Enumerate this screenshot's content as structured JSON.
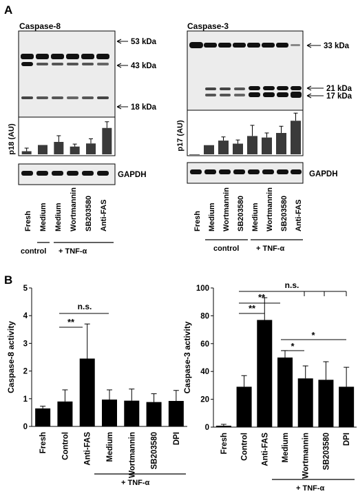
{
  "panel_a": {
    "label": "A",
    "caspase8": {
      "title": "Caspase-8",
      "markers": [
        "53 kDa",
        "43 kDa",
        "18 kDa"
      ],
      "ylabel": "p18 (AU)",
      "loading": "GAPDH",
      "lanes": [
        "Fresh",
        "Medium",
        "Medium",
        "Wortmannin",
        "SB203580",
        "Anti-FAS"
      ],
      "groups": [
        "control",
        "+ TNF-α"
      ]
    },
    "caspase3": {
      "title": "Caspase-3",
      "markers": [
        "33 kDa",
        "21 kDa",
        "17 kDa"
      ],
      "ylabel": "p17 (AU)",
      "loading": "GAPDH",
      "lanes": [
        "Fresh",
        "Medium",
        "Wortmannin",
        "SB203580",
        "Medium",
        "Wortmannin",
        "SB203580",
        "Anti-FAS"
      ],
      "groups": [
        "control",
        "+ TNF-α"
      ]
    }
  },
  "panel_b": {
    "label": "B",
    "group_label": "+ TNF-α",
    "stats_c8": [
      "**",
      "n.s."
    ],
    "stats_c3": [
      "**",
      "**",
      "n.s.",
      "*",
      "*"
    ]
  },
  "chart_data": [
    {
      "type": "bar",
      "title": "Caspase-8",
      "ylabel": "p18 (AU)",
      "categories": [
        "Fresh",
        "Medium",
        "Medium",
        "Wortmannin",
        "SB203580",
        "Anti-FAS"
      ],
      "values": [
        0.1,
        0.3,
        0.4,
        0.25,
        0.35,
        0.85
      ],
      "errors": [
        0.1,
        0.0,
        0.2,
        0.08,
        0.15,
        0.2
      ],
      "ylim": [
        0,
        1.2
      ]
    },
    {
      "type": "bar",
      "title": "Caspase-3",
      "ylabel": "p17 (AU)",
      "categories": [
        "Fresh",
        "Medium",
        "Wortmannin",
        "SB203580",
        "Medium",
        "Wortmannin",
        "SB203580",
        "Anti-FAS"
      ],
      "values": [
        0.0,
        0.3,
        0.45,
        0.35,
        0.6,
        0.55,
        0.7,
        1.1
      ],
      "errors": [
        0.0,
        0.0,
        0.12,
        0.12,
        0.35,
        0.15,
        0.22,
        0.25
      ],
      "ylim": [
        0,
        1.4
      ]
    },
    {
      "type": "bar",
      "ylabel": "Caspase-8 activity",
      "categories": [
        "Fresh",
        "Control",
        "Anti-FAS",
        "Medium",
        "Wortmannin",
        "SB203580",
        "DPI"
      ],
      "values": [
        0.65,
        0.9,
        2.45,
        0.97,
        0.93,
        0.88,
        0.92
      ],
      "errors": [
        0.08,
        0.42,
        1.25,
        0.35,
        0.42,
        0.3,
        0.38
      ],
      "ylim": [
        0,
        5
      ],
      "yticks": [
        0,
        1,
        2,
        3,
        4,
        5
      ]
    },
    {
      "type": "bar",
      "ylabel": "Caspase-3 activity",
      "categories": [
        "Fresh",
        "Control",
        "Anti-FAS",
        "Medium",
        "Wortmannin",
        "SB203580",
        "DPI"
      ],
      "values": [
        1,
        29,
        77,
        50,
        35,
        34,
        29
      ],
      "errors": [
        1,
        8,
        16,
        5,
        9,
        13,
        14
      ],
      "ylim": [
        0,
        100
      ],
      "yticks": [
        0,
        20,
        40,
        60,
        80,
        100
      ]
    }
  ]
}
